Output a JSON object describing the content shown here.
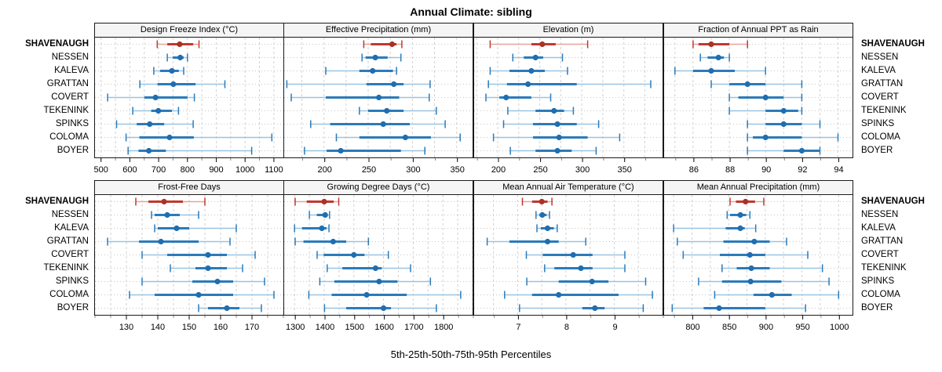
{
  "title": "Annual Climate: sibling",
  "caption": "5th-25th-50th-75th-95th Percentiles",
  "colors": {
    "highlight_main": "#c0392f",
    "highlight_light": "#e5a49b",
    "highlight_dot": "#a93226",
    "normal_main": "#2b7bba",
    "normal_light": "#9ac4e2",
    "normal_dot": "#1f6eb0",
    "grid_major": "#d2d2d2",
    "grid_row": "#c6c6c6",
    "strip_bg": "#f5f5f5",
    "border": "#1a1a1a",
    "tick_major": "#111111",
    "tick_minor": "#8a8a8a"
  },
  "chart_data": {
    "type": "dotplot-trellis",
    "percentile_labels": [
      "5th",
      "25th",
      "50th",
      "75th",
      "95th"
    ],
    "stations": [
      "SHAVENAUGH",
      "NESSEN",
      "KALEVA",
      "GRATTAN",
      "COVERT",
      "TEKENINK",
      "SPINKS",
      "COLOMA",
      "BOYER"
    ],
    "highlight_station": "SHAVENAUGH",
    "panels": [
      {
        "title": "Design Freeze Index (°C)",
        "ticks": [
          500,
          600,
          700,
          800,
          900,
          1000,
          1100
        ],
        "minor_step": 50,
        "xlim": [
          479,
          1133
        ],
        "values": {
          "SHAVENAUGH": [
            695,
            730,
            773,
            820,
            840
          ],
          "NESSEN": [
            730,
            749,
            775,
            787,
            800
          ],
          "KALEVA": [
            683,
            705,
            746,
            770,
            787
          ],
          "GRATTAN": [
            635,
            696,
            751,
            828,
            930
          ],
          "COVERT": [
            523,
            650,
            689,
            800,
            824
          ],
          "TEKENINK": [
            610,
            674,
            699,
            746,
            769
          ],
          "SPINKS": [
            554,
            624,
            669,
            719,
            820
          ],
          "COLOMA": [
            587,
            633,
            738,
            822,
            1093
          ],
          "BOYER": [
            594,
            630,
            666,
            725,
            1023
          ]
        }
      },
      {
        "title": "Effective Precipitation (mm)",
        "ticks": [
          200,
          250,
          300,
          350
        ],
        "minor_step": 25,
        "xlim": [
          155,
          368
        ],
        "values": {
          "SHAVENAUGH": [
            245,
            253,
            277,
            282,
            288
          ],
          "NESSEN": [
            243,
            247,
            258,
            272,
            287
          ],
          "KALEVA": [
            202,
            240,
            255,
            278,
            282
          ],
          "GRATTAN": [
            158,
            248,
            279,
            290,
            320
          ],
          "COVERT": [
            163,
            202,
            262,
            285,
            319
          ],
          "TEKENINK": [
            240,
            250,
            271,
            290,
            327
          ],
          "SPINKS": [
            185,
            207,
            267,
            297,
            337
          ],
          "COLOMA": [
            214,
            240,
            292,
            321,
            354
          ],
          "BOYER": [
            178,
            203,
            219,
            287,
            314
          ]
        }
      },
      {
        "title": "Elevation (m)",
        "ticks": [
          200,
          250,
          300,
          350
        ],
        "minor_step": 25,
        "xlim": [
          172,
          396
        ],
        "values": {
          "SHAVENAUGH": [
            191,
            240,
            253,
            269,
            307
          ],
          "NESSEN": [
            218,
            231,
            245,
            254,
            277
          ],
          "KALEVA": [
            191,
            214,
            240,
            256,
            283
          ],
          "GRATTAN": [
            189,
            211,
            236,
            294,
            382
          ],
          "COVERT": [
            186,
            202,
            210,
            240,
            263
          ],
          "TEKENINK": [
            212,
            245,
            267,
            279,
            290
          ],
          "SPINKS": [
            207,
            242,
            271,
            294,
            320
          ],
          "COLOMA": [
            195,
            242,
            273,
            307,
            345
          ],
          "BOYER": [
            215,
            245,
            271,
            288,
            317
          ]
        }
      },
      {
        "title": "Fraction of Annual PPT as Rain",
        "ticks": [
          86,
          88,
          90,
          92,
          94
        ],
        "minor_step": 1,
        "xlim": [
          84.4,
          94.8
        ],
        "values": {
          "SHAVENAUGH": [
            86,
            86.3,
            87,
            88,
            89
          ],
          "NESSEN": [
            86.4,
            86.8,
            87.4,
            87.7,
            88
          ],
          "KALEVA": [
            85,
            86,
            87,
            88.3,
            90
          ],
          "GRATTAN": [
            87,
            88,
            89,
            90,
            92
          ],
          "COVERT": [
            88,
            88.5,
            90,
            91,
            92
          ],
          "TEKENINK": [
            88,
            90,
            91,
            91.8,
            92
          ],
          "SPINKS": [
            89,
            90,
            91,
            92,
            93
          ],
          "COLOMA": [
            89,
            89.3,
            90,
            92,
            94
          ],
          "BOYER": [
            89,
            91,
            92,
            93,
            93
          ]
        }
      },
      {
        "title": "Frost-Free Days",
        "ticks": [
          130,
          140,
          150,
          160,
          170
        ],
        "minor_step": 5,
        "xlim": [
          120,
          180
        ],
        "values": {
          "SHAVENAUGH": [
            133,
            137,
            142,
            148,
            155
          ],
          "NESSEN": [
            138,
            139,
            143,
            147,
            153
          ],
          "KALEVA": [
            139,
            140,
            146,
            150,
            165
          ],
          "GRATTAN": [
            124,
            134,
            141,
            153,
            163
          ],
          "COVERT": [
            135,
            143,
            156,
            162,
            171
          ],
          "TEKENINK": [
            144,
            152,
            156,
            162,
            167
          ],
          "SPINKS": [
            135,
            151,
            159,
            164,
            174
          ],
          "COLOMA": [
            131,
            139,
            153,
            164,
            177
          ],
          "BOYER": [
            153,
            156,
            162,
            166,
            173
          ]
        }
      },
      {
        "title": "Growing Degree Days (°C)",
        "ticks": [
          1300,
          1400,
          1500,
          1600,
          1700,
          1800
        ],
        "minor_step": 50,
        "xlim": [
          1265,
          1900
        ],
        "values": {
          "SHAVENAUGH": [
            1302,
            1341,
            1400,
            1432,
            1449
          ],
          "NESSEN": [
            1350,
            1375,
            1403,
            1412,
            1418
          ],
          "KALEVA": [
            1300,
            1325,
            1392,
            1408,
            1416
          ],
          "GRATTAN": [
            1302,
            1330,
            1430,
            1474,
            1549
          ],
          "COVERT": [
            1376,
            1398,
            1500,
            1536,
            1616
          ],
          "TEKENINK": [
            1410,
            1461,
            1573,
            1594,
            1691
          ],
          "SPINKS": [
            1385,
            1434,
            1585,
            1647,
            1758
          ],
          "COLOMA": [
            1348,
            1425,
            1543,
            1678,
            1860
          ],
          "BOYER": [
            1401,
            1474,
            1600,
            1625,
            1778
          ]
        }
      },
      {
        "title": "Mean Annual Air Temperature (°C)",
        "ticks": [
          7,
          8,
          9
        ],
        "minor_step": 0.5,
        "xlim": [
          6.1,
          10.0
        ],
        "values": {
          "SHAVENAUGH": [
            7.1,
            7.3,
            7.5,
            7.62,
            7.71
          ],
          "NESSEN": [
            7.38,
            7.45,
            7.51,
            7.6,
            7.66
          ],
          "KALEVA": [
            7.4,
            7.48,
            7.62,
            7.75,
            7.82
          ],
          "GRATTAN": [
            6.37,
            6.83,
            7.62,
            7.85,
            8.41
          ],
          "COVERT": [
            7.18,
            7.52,
            8.15,
            8.55,
            9.22
          ],
          "TEKENINK": [
            7.56,
            7.76,
            8.31,
            8.55,
            9.22
          ],
          "SPINKS": [
            7.19,
            7.85,
            8.54,
            8.88,
            9.65
          ],
          "COLOMA": [
            6.73,
            7.3,
            7.85,
            9.09,
            9.79
          ],
          "BOYER": [
            7.04,
            8.34,
            8.6,
            8.8,
            9.6
          ]
        }
      },
      {
        "title": "Mean Annual Precipitation (mm)",
        "ticks": [
          800,
          850,
          900,
          950,
          1000
        ],
        "minor_step": 25,
        "xlim": [
          762,
          1019
        ],
        "values": {
          "SHAVENAUGH": [
            852,
            860,
            873,
            886,
            898
          ],
          "NESSEN": [
            848,
            852,
            866,
            874,
            879
          ],
          "KALEVA": [
            775,
            846,
            866,
            872,
            887
          ],
          "GRATTAN": [
            780,
            843,
            885,
            906,
            929
          ],
          "COVERT": [
            788,
            838,
            879,
            900,
            958
          ],
          "TEKENINK": [
            841,
            861,
            881,
            906,
            978
          ],
          "SPINKS": [
            809,
            841,
            880,
            922,
            987
          ],
          "COLOMA": [
            831,
            884,
            909,
            936,
            1000
          ],
          "BOYER": [
            773,
            816,
            837,
            900,
            955
          ]
        }
      }
    ]
  }
}
